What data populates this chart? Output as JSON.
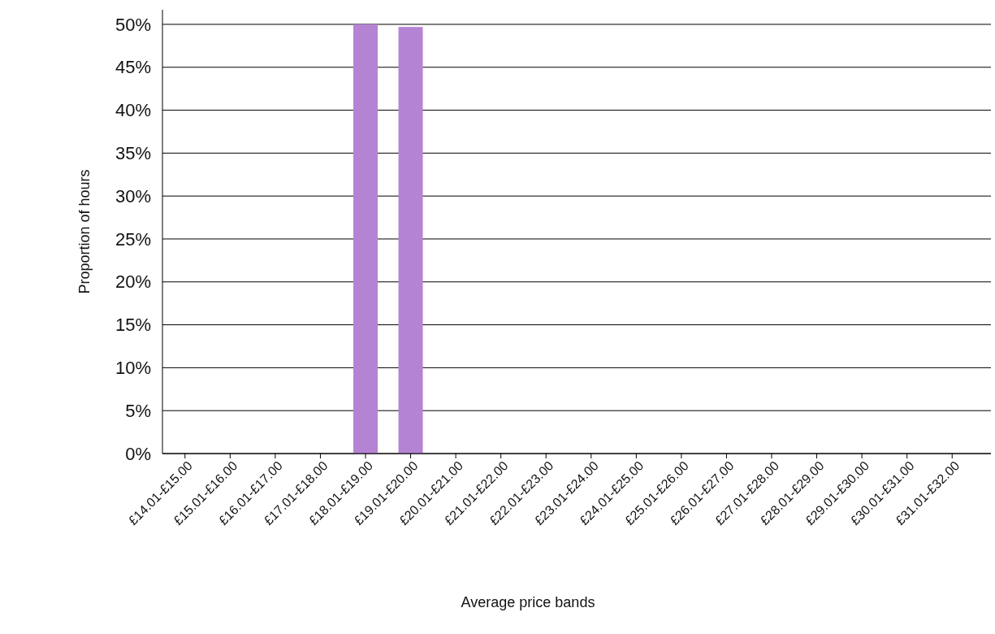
{
  "chart_data": {
    "type": "bar",
    "xlabel": "Average price bands",
    "ylabel": "Proportion of hours",
    "categories": [
      "£14.01-£15.00",
      "£15.01-£16.00",
      "£16.01-£17.00",
      "£17.01-£18.00",
      "£18.01-£19.00",
      "£19.01-£20.00",
      "£20.01-£21.00",
      "£21.01-£22.00",
      "£22.01-£23.00",
      "£23.01-£24.00",
      "£24.01-£25.00",
      "£25.01-£26.00",
      "£26.01-£27.00",
      "£27.01-£28.00",
      "£28.01-£29.00",
      "£29.01-£30.00",
      "£30.01-£31.00",
      "£31.01-£32.00"
    ],
    "values": [
      0,
      0,
      0,
      0,
      50,
      49.7,
      0,
      0,
      0,
      0,
      0,
      0,
      0,
      0,
      0,
      0,
      0,
      0
    ],
    "color": "#b583d4",
    "ylim": [
      0,
      51.7
    ],
    "yticks": [
      {
        "value": 0,
        "label": "0%"
      },
      {
        "value": 5,
        "label": "5%"
      },
      {
        "value": 10,
        "label": "10%"
      },
      {
        "value": 15,
        "label": "15%"
      },
      {
        "value": 20,
        "label": "20%"
      },
      {
        "value": 25,
        "label": "25%"
      },
      {
        "value": 30,
        "label": "30%"
      },
      {
        "value": 35,
        "label": "35%"
      },
      {
        "value": 40,
        "label": "40%"
      },
      {
        "value": 45,
        "label": "45%"
      },
      {
        "value": 50,
        "label": "50%"
      }
    ],
    "grid": "y"
  }
}
